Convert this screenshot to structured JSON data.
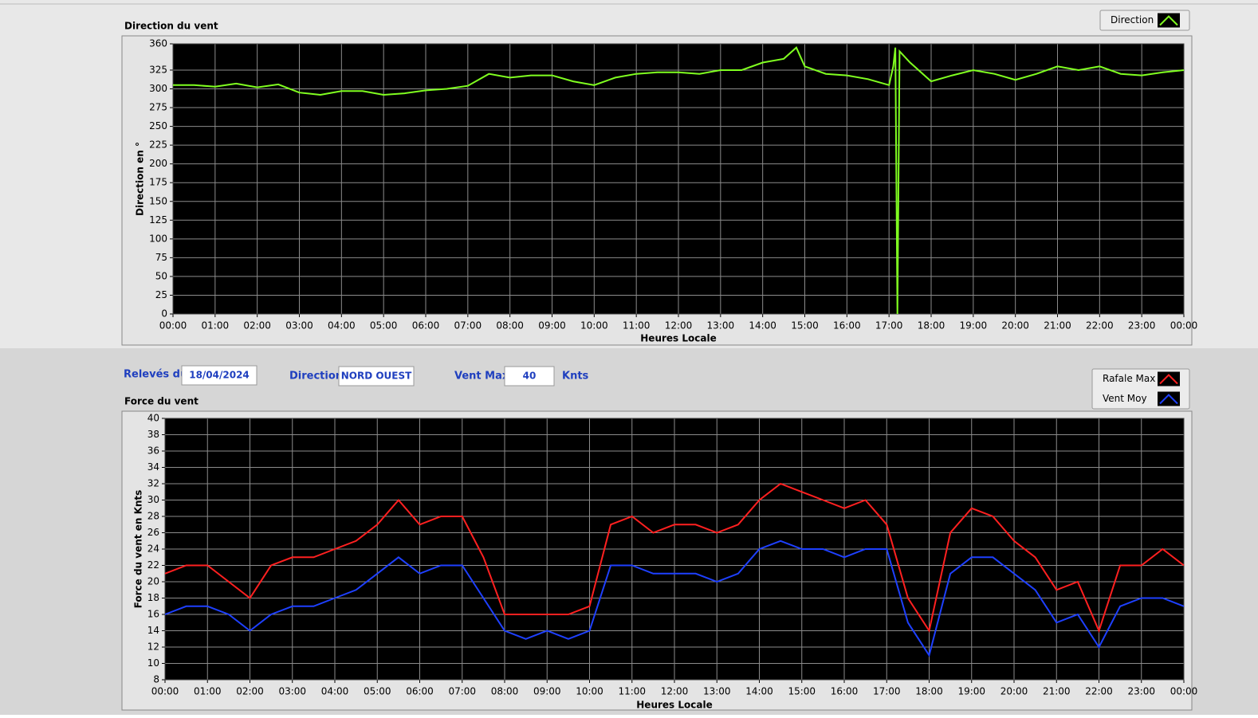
{
  "chart_data": [
    {
      "type": "line",
      "title": "Direction du vent",
      "ylabel": "Direction en °",
      "xlabel": "Heures Locale",
      "x": [
        0,
        0.5,
        1,
        1.5,
        2,
        2.5,
        3,
        3.5,
        4,
        4.5,
        5,
        5.5,
        6,
        6.5,
        7,
        7.5,
        8,
        8.5,
        9,
        9.5,
        10,
        10.5,
        11,
        11.5,
        12,
        12.5,
        13,
        13.5,
        14,
        14.5,
        14.8,
        15,
        15.5,
        16,
        16.5,
        17,
        17.1,
        17.15,
        17.2,
        17.25,
        17.5,
        18,
        18.5,
        19,
        19.5,
        20,
        20.5,
        21,
        21.5,
        22,
        22.5,
        23,
        23.5,
        24
      ],
      "series": [
        {
          "name": "Direction",
          "color": "#80ff20",
          "values": [
            305,
            305,
            303,
            307,
            302,
            306,
            295,
            292,
            297,
            297,
            292,
            294,
            298,
            300,
            304,
            320,
            315,
            318,
            318,
            310,
            305,
            315,
            320,
            322,
            322,
            320,
            325,
            325,
            335,
            340,
            355,
            330,
            320,
            318,
            313,
            305,
            330,
            355,
            0,
            350,
            335,
            310,
            318,
            325,
            320,
            312,
            320,
            330,
            325,
            330,
            320,
            318,
            322,
            325
          ]
        }
      ],
      "xlim": [
        0,
        24
      ],
      "ylim": [
        0,
        360
      ],
      "xticks": [
        {
          "value": 0,
          "label": "00:00"
        },
        {
          "value": 1,
          "label": "01:00"
        },
        {
          "value": 2,
          "label": "02:00"
        },
        {
          "value": 3,
          "label": "03:00"
        },
        {
          "value": 4,
          "label": "04:00"
        },
        {
          "value": 5,
          "label": "05:00"
        },
        {
          "value": 6,
          "label": "06:00"
        },
        {
          "value": 7,
          "label": "07:00"
        },
        {
          "value": 8,
          "label": "08:00"
        },
        {
          "value": 9,
          "label": "09:00"
        },
        {
          "value": 10,
          "label": "10:00"
        },
        {
          "value": 11,
          "label": "11:00"
        },
        {
          "value": 12,
          "label": "12:00"
        },
        {
          "value": 13,
          "label": "13:00"
        },
        {
          "value": 14,
          "label": "14:00"
        },
        {
          "value": 15,
          "label": "15:00"
        },
        {
          "value": 16,
          "label": "16:00"
        },
        {
          "value": 17,
          "label": "17:00"
        },
        {
          "value": 18,
          "label": "18:00"
        },
        {
          "value": 19,
          "label": "19:00"
        },
        {
          "value": 20,
          "label": "20:00"
        },
        {
          "value": 21,
          "label": "21:00"
        },
        {
          "value": 22,
          "label": "22:00"
        },
        {
          "value": 23,
          "label": "23:00"
        },
        {
          "value": 24,
          "label": "00:00"
        }
      ],
      "yticks": [
        0,
        25,
        50,
        75,
        100,
        125,
        150,
        175,
        200,
        225,
        250,
        275,
        300,
        325,
        360
      ],
      "grid": true
    },
    {
      "type": "line",
      "title": "Force du vent",
      "ylabel": "Force du vent en Knts",
      "xlabel": "Heures Locale",
      "x": [
        0,
        0.5,
        1,
        1.5,
        2,
        2.5,
        3,
        3.5,
        4,
        4.5,
        5,
        5.5,
        6,
        6.5,
        7,
        7.5,
        8,
        8.5,
        9,
        9.5,
        10,
        10.5,
        11,
        11.5,
        12,
        12.5,
        13,
        13.5,
        14,
        14.5,
        15,
        15.5,
        16,
        16.5,
        17,
        17.5,
        18,
        18.5,
        19,
        19.5,
        20,
        20.5,
        21,
        21.5,
        22,
        22.5,
        23,
        23.5,
        24
      ],
      "series": [
        {
          "name": "Rafale Max",
          "color": "#ff2020",
          "values": [
            21,
            22,
            22,
            20,
            18,
            22,
            23,
            23,
            24,
            25,
            27,
            30,
            27,
            28,
            28,
            23,
            16,
            16,
            16,
            16,
            17,
            27,
            28,
            26,
            27,
            27,
            26,
            27,
            30,
            32,
            31,
            30,
            29,
            30,
            27,
            18,
            14,
            26,
            29,
            28,
            25,
            23,
            19,
            20,
            14,
            22,
            22,
            24,
            22
          ]
        },
        {
          "name": "Vent Moy",
          "color": "#1e40ff",
          "values": [
            16,
            17,
            17,
            16,
            14,
            16,
            17,
            17,
            18,
            19,
            21,
            23,
            21,
            22,
            22,
            18,
            14,
            13,
            14,
            13,
            14,
            22,
            22,
            21,
            21,
            21,
            20,
            21,
            24,
            25,
            24,
            24,
            23,
            24,
            24,
            15,
            11,
            21,
            23,
            23,
            21,
            19,
            15,
            16,
            12,
            17,
            18,
            18,
            17
          ]
        }
      ],
      "xlim": [
        0,
        24
      ],
      "ylim": [
        8,
        40
      ],
      "xticks": [
        {
          "value": 0,
          "label": "00:00"
        },
        {
          "value": 1,
          "label": "01:00"
        },
        {
          "value": 2,
          "label": "02:00"
        },
        {
          "value": 3,
          "label": "03:00"
        },
        {
          "value": 4,
          "label": "04:00"
        },
        {
          "value": 5,
          "label": "05:00"
        },
        {
          "value": 6,
          "label": "06:00"
        },
        {
          "value": 7,
          "label": "07:00"
        },
        {
          "value": 8,
          "label": "08:00"
        },
        {
          "value": 9,
          "label": "09:00"
        },
        {
          "value": 10,
          "label": "10:00"
        },
        {
          "value": 11,
          "label": "11:00"
        },
        {
          "value": 12,
          "label": "12:00"
        },
        {
          "value": 13,
          "label": "13:00"
        },
        {
          "value": 14,
          "label": "14:00"
        },
        {
          "value": 15,
          "label": "15:00"
        },
        {
          "value": 16,
          "label": "16:00"
        },
        {
          "value": 17,
          "label": "17:00"
        },
        {
          "value": 18,
          "label": "18:00"
        },
        {
          "value": 19,
          "label": "19:00"
        },
        {
          "value": 20,
          "label": "20:00"
        },
        {
          "value": 21,
          "label": "21:00"
        },
        {
          "value": 22,
          "label": "22:00"
        },
        {
          "value": 23,
          "label": "23:00"
        },
        {
          "value": 24,
          "label": "00:00"
        }
      ],
      "yticks": [
        8,
        10,
        12,
        14,
        16,
        18,
        20,
        22,
        24,
        26,
        28,
        30,
        32,
        34,
        36,
        38,
        40
      ],
      "grid": true
    }
  ],
  "form": {
    "date_label": "Relevés du",
    "date": "18/04/2024",
    "direction_label": "Direction",
    "direction": "NORD OUEST",
    "max_label": "Vent Max",
    "max": 40,
    "unit": "Knts"
  }
}
